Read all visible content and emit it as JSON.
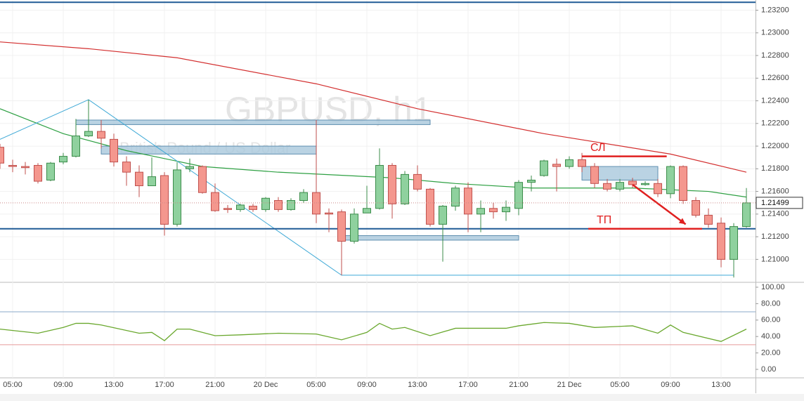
{
  "chart_data": [
    {
      "type": "candlestick",
      "title": "GBPUSD, h1",
      "subtitle": "British Pound / US Dollar",
      "categories": [
        null,
        "05:00",
        null,
        null,
        null,
        "09:00",
        null,
        null,
        null,
        "13:00",
        null,
        null,
        null,
        "17:00",
        null,
        null,
        null,
        "21:00",
        null,
        null,
        null,
        "20 Dec",
        null,
        null,
        null,
        "05:00",
        null,
        null,
        null,
        "09:00",
        null,
        null,
        null,
        "13:00",
        null,
        null,
        null,
        "17:00",
        null,
        null,
        null,
        "21:00",
        null,
        null,
        null,
        "21 Dec",
        null,
        null,
        null,
        "05:00",
        null,
        null,
        null,
        "09:00",
        null,
        null,
        null,
        "13:00",
        null,
        null
      ],
      "open": [
        1.2199,
        1.2183,
        1.2182,
        1.2183,
        1.217,
        1.2186,
        1.2191,
        1.2209,
        1.2213,
        1.2206,
        1.2186,
        1.2177,
        1.2165,
        1.2174,
        1.2131,
        1.218,
        1.2182,
        1.2159,
        1.2145,
        1.2144,
        1.2147,
        1.2144,
        1.2152,
        1.2144,
        1.2152,
        1.2159,
        1.2141,
        1.2142,
        1.2116,
        1.2141,
        1.2145,
        1.2183,
        1.2149,
        1.2175,
        1.2162,
        1.2131,
        1.2147,
        1.2163,
        1.214,
        1.2145,
        1.2142,
        1.2145,
        1.2168,
        1.2174,
        1.2184,
        1.2182,
        1.2188,
        1.2182,
        1.2167,
        1.2162,
        1.2169,
        1.2166,
        1.2167,
        1.2158,
        1.2182,
        1.2152,
        1.2139,
        1.2132,
        1.21,
        1.2129
      ],
      "high": [
        1.2202,
        1.2188,
        1.2186,
        1.2185,
        1.2186,
        1.2194,
        1.2224,
        1.2241,
        1.2223,
        1.2211,
        1.2191,
        1.2183,
        1.219,
        1.2177,
        1.2186,
        1.2189,
        1.2183,
        1.2167,
        1.2148,
        1.2149,
        1.2149,
        1.2155,
        1.2155,
        1.2154,
        1.2162,
        1.2223,
        1.2145,
        1.2144,
        1.2145,
        1.2165,
        1.2198,
        1.2185,
        1.2178,
        1.2183,
        1.2163,
        1.2148,
        1.2165,
        1.2168,
        1.2152,
        1.215,
        1.2152,
        1.217,
        1.2174,
        1.2188,
        1.2189,
        1.2191,
        1.2194,
        1.2185,
        1.2171,
        1.2171,
        1.2172,
        1.2169,
        1.2171,
        1.2183,
        1.2183,
        1.2155,
        1.2145,
        1.2137,
        1.2132,
        1.2163
      ],
      "low": [
        1.218,
        1.2177,
        1.2175,
        1.2167,
        1.2169,
        1.2184,
        1.219,
        1.2208,
        1.2198,
        1.2182,
        1.2165,
        1.2155,
        1.2165,
        1.2121,
        1.2129,
        1.2177,
        1.2158,
        1.2142,
        1.2141,
        1.2142,
        1.2142,
        1.2142,
        1.2142,
        1.2143,
        1.215,
        1.2132,
        1.2124,
        1.2086,
        1.2114,
        1.2141,
        1.2144,
        1.2136,
        1.2148,
        1.216,
        1.2129,
        1.2098,
        1.2143,
        1.2124,
        1.2124,
        1.2136,
        1.2134,
        1.2139,
        1.216,
        1.2173,
        1.216,
        1.218,
        1.2177,
        1.2163,
        1.216,
        1.216,
        1.2163,
        1.2165,
        1.2155,
        1.2154,
        1.2149,
        1.2137,
        1.2128,
        1.2093,
        1.2084,
        1.2128
      ],
      "close": [
        1.2185,
        1.2182,
        1.2181,
        1.2169,
        1.2185,
        1.2191,
        1.2209,
        1.2213,
        1.2207,
        1.2186,
        1.2177,
        1.2165,
        1.2173,
        1.2131,
        1.2179,
        1.2182,
        1.2159,
        1.2143,
        1.2144,
        1.2148,
        1.2144,
        1.2154,
        1.2144,
        1.2152,
        1.2159,
        1.214,
        1.214,
        1.2116,
        1.214,
        1.2145,
        1.2183,
        1.2149,
        1.2175,
        1.2162,
        1.2131,
        1.2147,
        1.2163,
        1.214,
        1.2145,
        1.2142,
        1.2146,
        1.2168,
        1.217,
        1.2187,
        1.2182,
        1.2188,
        1.2182,
        1.2167,
        1.2162,
        1.2168,
        1.2166,
        1.2167,
        1.2158,
        1.2182,
        1.2152,
        1.2139,
        1.2131,
        1.21,
        1.2129,
        1.21499
      ],
      "up_color": "#8fd19e",
      "down_color": "#f4978e",
      "xlim": [
        0,
        59.72
      ],
      "ylim": [
        1.2081,
        1.2329
      ],
      "yticks": [
        {
          "value": 1.232,
          "label": "1.23200"
        },
        {
          "value": 1.23,
          "label": "1.23000"
        },
        {
          "value": 1.228,
          "label": "1.22800"
        },
        {
          "value": 1.226,
          "label": "1.22600"
        },
        {
          "value": 1.224,
          "label": "1.22400"
        },
        {
          "value": 1.222,
          "label": "1.22200"
        },
        {
          "value": 1.22,
          "label": "1.22000"
        },
        {
          "value": 1.218,
          "label": "1.21800"
        },
        {
          "value": 1.216,
          "label": "1.21600"
        },
        {
          "value": 1.214,
          "label": "1.21400"
        },
        {
          "value": 1.212,
          "label": "1.21200"
        },
        {
          "value": 1.21,
          "label": "1.21000"
        }
      ],
      "grid": true,
      "last_price": 1.21499,
      "ma_slow": {
        "color": "#d32f2f",
        "x": [
          0,
          7,
          14,
          25,
          33,
          43,
          53,
          59
        ],
        "values": [
          1.2292,
          1.2286,
          1.2278,
          1.2255,
          1.2233,
          1.2211,
          1.2193,
          1.2177
        ]
      },
      "ma_fast": {
        "color": "#2ea043",
        "x": [
          0,
          5,
          10,
          16,
          22,
          31,
          36,
          42,
          50,
          56,
          59
        ],
        "values": [
          1.2233,
          1.2211,
          1.2196,
          1.2182,
          1.2177,
          1.2172,
          1.2167,
          1.2163,
          1.2163,
          1.216,
          1.2155
        ]
      },
      "levels": [
        {
          "value": 1.2327,
          "color": "#1f5a96"
        },
        {
          "value": 1.2127,
          "color": "#1f5a96"
        }
      ],
      "zones": [
        {
          "x": [
            6,
            34
          ],
          "y": [
            1.2219,
            1.2223
          ]
        },
        {
          "x": [
            8,
            25
          ],
          "y": [
            1.2193,
            1.22
          ]
        },
        {
          "x": [
            27,
            41
          ],
          "y": [
            1.2117,
            1.2121
          ]
        },
        {
          "x": [
            46,
            52
          ],
          "y": [
            1.217,
            1.2182
          ]
        }
      ],
      "trendline": {
        "color": "#3fa9d6",
        "x": [
          0,
          7,
          27,
          58
        ],
        "values": [
          1.2206,
          1.2241,
          1.2086,
          1.2086
        ]
      },
      "annotations": [
        {
          "label": "СЛ",
          "x": [
            46,
            52.7
          ],
          "y": 1.2191
        },
        {
          "label": "ТП",
          "x": [
            46.5,
            55.5
          ],
          "y": 1.2127
        }
      ],
      "arrow": {
        "x": [
          50,
          54.2
        ],
        "y": [
          1.2166,
          1.2131
        ]
      }
    },
    {
      "type": "line",
      "x": [
        0,
        3,
        5,
        6,
        7,
        8,
        11,
        12,
        13,
        14,
        15,
        17,
        19,
        22,
        25,
        27,
        29,
        30,
        31,
        32,
        34,
        36,
        40,
        41,
        43,
        45,
        47,
        50,
        52,
        53,
        54,
        57,
        59
      ],
      "values": [
        49,
        44,
        51,
        56,
        56,
        54,
        44,
        45,
        35,
        49,
        49,
        41,
        42,
        44,
        43,
        36,
        45,
        56,
        49,
        51,
        41,
        50,
        50,
        53,
        57,
        56,
        51,
        53,
        44,
        54,
        45,
        34,
        49
      ],
      "color": "#6aa82e",
      "xlim": [
        0,
        59.72
      ],
      "ylim": [
        -10.3,
        105.1
      ],
      "yticks": [
        {
          "value": 100,
          "label": "100.00"
        },
        {
          "value": 80,
          "label": "80.00"
        },
        {
          "value": 60,
          "label": "60.00"
        },
        {
          "value": 40,
          "label": "40.00"
        },
        {
          "value": 20,
          "label": "20.00"
        },
        {
          "value": 0,
          "label": "0.00"
        }
      ],
      "levels": [
        {
          "value": 70,
          "color": "#8aa9c9"
        },
        {
          "value": 30,
          "color": "#e59a9a"
        }
      ]
    }
  ]
}
